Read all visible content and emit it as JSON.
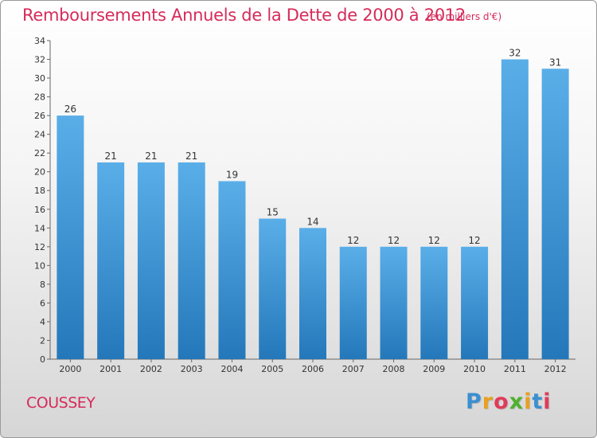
{
  "title": "Remboursements Annuels de la Dette de 2000 à 2012",
  "subtitle": "(en milliers d'€)",
  "commune": "COUSSEY",
  "logo": {
    "letters": [
      "P",
      "r",
      "o",
      "x",
      "i",
      "t",
      "i"
    ],
    "colors": [
      "#3a8fd0",
      "#e8a020",
      "#e03c5a",
      "#50b030",
      "#e8a020",
      "#3a8fd0",
      "#e03c5a"
    ]
  },
  "colors": {
    "title": "#d62b5a",
    "bar_light": "#5aaee8",
    "bar_dark": "#2478ba"
  },
  "chart_data": {
    "type": "bar",
    "title": "Remboursements Annuels de la Dette de 2000 à 2012",
    "xlabel": "",
    "ylabel": "",
    "ylim": [
      0,
      34
    ],
    "yticks": [
      0,
      2,
      4,
      6,
      8,
      10,
      12,
      14,
      16,
      18,
      20,
      22,
      24,
      26,
      28,
      30,
      32,
      34
    ],
    "grid": false,
    "categories": [
      "2000",
      "2001",
      "2002",
      "2003",
      "2004",
      "2005",
      "2006",
      "2007",
      "2008",
      "2009",
      "2010",
      "2011",
      "2012"
    ],
    "values": [
      26,
      21,
      21,
      21,
      19,
      15,
      14,
      12,
      12,
      12,
      12,
      32,
      31
    ]
  }
}
